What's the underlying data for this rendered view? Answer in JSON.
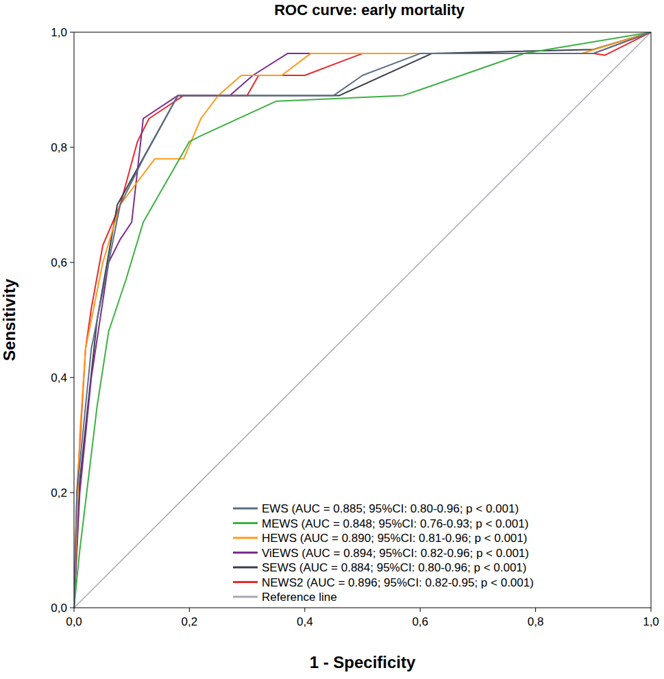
{
  "chart_data": {
    "type": "line",
    "title": "ROC curve: early mortality",
    "x_label": "1 - Specificity",
    "y_label": "Sensitivity",
    "xlim": [
      0,
      1
    ],
    "ylim": [
      0,
      1
    ],
    "xticks": [
      {
        "value": 0,
        "label": "0,0"
      },
      {
        "value": 0.2,
        "label": "0,2"
      },
      {
        "value": 0.4,
        "label": "0,4"
      },
      {
        "value": 0.6,
        "label": "0,6"
      },
      {
        "value": 0.8,
        "label": "0,8"
      },
      {
        "value": 1,
        "label": "1,0"
      }
    ],
    "yticks": [
      {
        "value": 0,
        "label": "0,0"
      },
      {
        "value": 0.2,
        "label": "0,2"
      },
      {
        "value": 0.4,
        "label": "0,4"
      },
      {
        "value": 0.6,
        "label": "0,6"
      },
      {
        "value": 0.8,
        "label": "0,8"
      },
      {
        "value": 1,
        "label": "1,0"
      }
    ],
    "grid": false,
    "legend": "lower right",
    "series": [
      {
        "name": "EWS (AUC = 0.885; 95%CI: 0.80-0.96; p < 0.001)",
        "color": "#5b6f86",
        "x": [
          0,
          0.005,
          0.03,
          0.06,
          0.08,
          0.12,
          0.18,
          0.45,
          0.5,
          0.6,
          0.9,
          1
        ],
        "values": [
          0,
          0.2,
          0.45,
          0.6,
          0.7,
          0.78,
          0.89,
          0.89,
          0.925,
          0.963,
          0.963,
          1
        ]
      },
      {
        "name": "MEWS (AUC = 0.848; 95%CI: 0.76-0.93; p < 0.001)",
        "color": "#3cb043",
        "x": [
          0,
          0.01,
          0.04,
          0.06,
          0.09,
          0.12,
          0.2,
          0.22,
          0.35,
          0.57,
          0.6,
          0.78,
          1
        ],
        "values": [
          0,
          0.1,
          0.35,
          0.48,
          0.57,
          0.67,
          0.81,
          0.82,
          0.88,
          0.89,
          0.9,
          0.963,
          1
        ]
      },
      {
        "name": "HEWS (AUC = 0.890; 95%CI: 0.81-0.96; p < 0.001)",
        "color": "#ff9a1a",
        "x": [
          0,
          0.01,
          0.02,
          0.05,
          0.08,
          0.11,
          0.14,
          0.19,
          0.22,
          0.25,
          0.29,
          0.36,
          0.41,
          0.88,
          1
        ],
        "values": [
          0,
          0.3,
          0.45,
          0.6,
          0.7,
          0.74,
          0.78,
          0.78,
          0.85,
          0.89,
          0.925,
          0.925,
          0.963,
          0.963,
          1
        ]
      },
      {
        "name": "ViEWS (AUC = 0.894; 95%CI: 0.82-0.96; p < 0.001)",
        "color": "#7b2d8e",
        "x": [
          0,
          0.01,
          0.03,
          0.06,
          0.08,
          0.1,
          0.12,
          0.18,
          0.27,
          0.31,
          0.37,
          0.9,
          1
        ],
        "values": [
          0,
          0.2,
          0.4,
          0.6,
          0.64,
          0.67,
          0.85,
          0.89,
          0.89,
          0.925,
          0.963,
          0.963,
          1
        ]
      },
      {
        "name": "SEWS (AUC = 0.884; 95%CI: 0.80-0.96; p < 0.001)",
        "color": "#3a3d4c",
        "x": [
          0,
          0.01,
          0.04,
          0.075,
          0.18,
          0.46,
          0.62,
          0.9,
          1
        ],
        "values": [
          0,
          0.22,
          0.5,
          0.7,
          0.89,
          0.89,
          0.963,
          0.97,
          1
        ]
      },
      {
        "name": "NEWS2 (AUC = 0.896; 95%CI: 0.82-0.95; p < 0.001)",
        "color": "#e8272c",
        "x": [
          0,
          0.005,
          0.02,
          0.03,
          0.05,
          0.08,
          0.11,
          0.13,
          0.19,
          0.3,
          0.32,
          0.4,
          0.5,
          0.9,
          0.92,
          1
        ],
        "values": [
          0,
          0.2,
          0.45,
          0.52,
          0.63,
          0.7,
          0.81,
          0.85,
          0.89,
          0.89,
          0.925,
          0.925,
          0.963,
          0.963,
          0.96,
          1
        ]
      },
      {
        "name": "Reference line",
        "color": "#a8a8b0",
        "x": [
          0,
          1
        ],
        "values": [
          0,
          1
        ]
      }
    ]
  }
}
